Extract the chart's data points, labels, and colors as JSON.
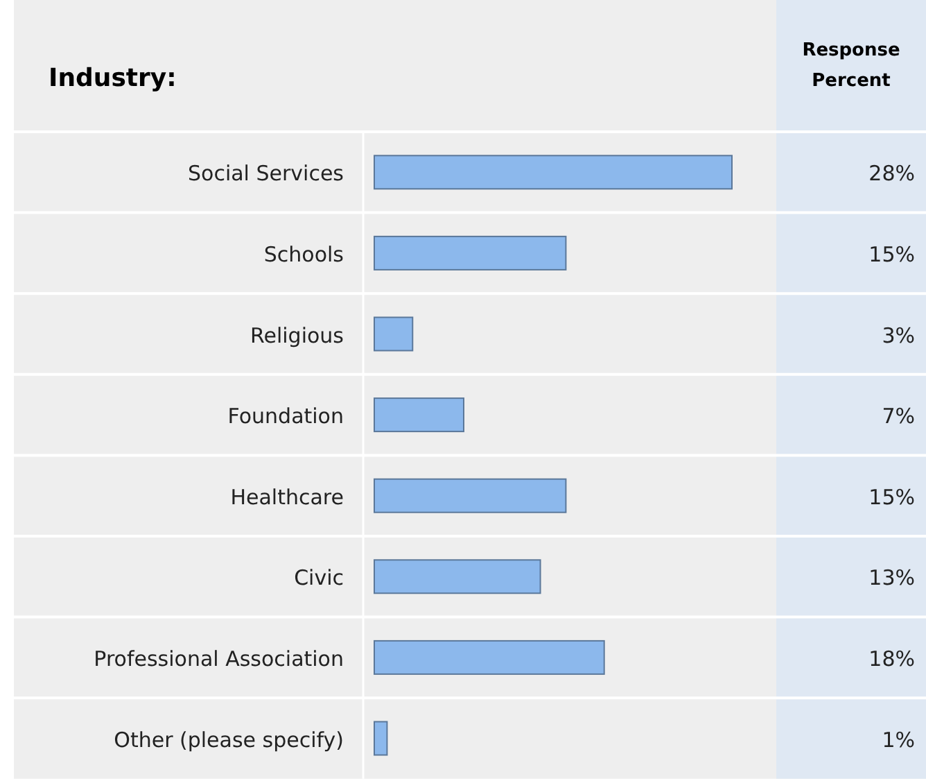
{
  "chart_data": {
    "type": "bar",
    "orientation": "horizontal",
    "title": "Industry:",
    "xlabel": "Response Percent",
    "categories": [
      "Social Services",
      "Schools",
      "Religious",
      "Foundation",
      "Healthcare",
      "Civic",
      "Professional Association",
      "Other (please specify)"
    ],
    "values": [
      28,
      15,
      3,
      7,
      15,
      13,
      18,
      1
    ],
    "value_labels": [
      "28%",
      "15%",
      "3%",
      "7%",
      "15%",
      "13%",
      "18%",
      "1%"
    ],
    "color": "#8cb8ec"
  }
}
